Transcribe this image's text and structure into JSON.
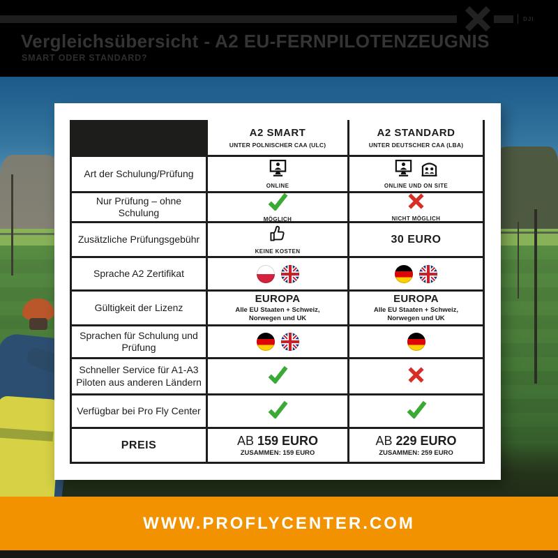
{
  "header": {
    "title": "Vergleichsübersicht - A2 EU-FERNPILOTENZEUGNIS",
    "subtitle": "SMART ODER STANDARD?",
    "partner_label": "DJI"
  },
  "table": {
    "columns": [
      {
        "title": "A2 SMART",
        "subtitle": "UNTER POLNISCHER CAA (ULC)"
      },
      {
        "title": "A2 STANDARD",
        "subtitle": "UNTER DEUTSCHER CAA (LBA)"
      }
    ],
    "rows": [
      {
        "label": "Art der Schulung/Prüfung",
        "smart": {
          "type": "icons",
          "icons": [
            "monitor-user"
          ],
          "caption": "ONLINE"
        },
        "standard": {
          "type": "icons",
          "icons": [
            "monitor-user",
            "building-users"
          ],
          "caption": "ONLINE UND ON SITE"
        }
      },
      {
        "label": "Nur Prüfung – ohne Schulung",
        "smart": {
          "type": "icons",
          "icons": [
            "green-check"
          ],
          "caption": "MÖGLICH"
        },
        "standard": {
          "type": "icons",
          "icons": [
            "red-cross"
          ],
          "caption": "NICHT MÖGLICH"
        }
      },
      {
        "label": "Zusätzliche Prüfungsgebühr",
        "smart": {
          "type": "icons",
          "icons": [
            "thumbs-up"
          ],
          "caption": "KEINE KOSTEN"
        },
        "standard": {
          "type": "text",
          "text": "30 EURO"
        }
      },
      {
        "label": "Sprache A2 Zertifikat",
        "smart": {
          "type": "flags",
          "flags": [
            "poland",
            "uk"
          ]
        },
        "standard": {
          "type": "flags",
          "flags": [
            "germany",
            "uk"
          ]
        }
      },
      {
        "label": "Gültigkeit der Lizenz",
        "smart": {
          "type": "title-sub",
          "title": "EUROPA",
          "sub": "Alle EU Staaten + Schweiz, Norwegen und UK"
        },
        "standard": {
          "type": "title-sub",
          "title": "EUROPA",
          "sub": "Alle EU Staaten + Schweiz, Norwegen und UK"
        }
      },
      {
        "label": "Sprachen für Schulung und Prüfung",
        "smart": {
          "type": "flags",
          "flags": [
            "germany",
            "uk"
          ]
        },
        "standard": {
          "type": "flags",
          "flags": [
            "germany"
          ]
        }
      },
      {
        "label": "Schneller Service für A1-A3 Piloten aus anderen Ländern",
        "smart": {
          "type": "icons",
          "icons": [
            "green-check"
          ],
          "caption": ""
        },
        "standard": {
          "type": "icons",
          "icons": [
            "red-cross"
          ],
          "caption": ""
        }
      },
      {
        "label": "Verfügbar bei Pro Fly Center",
        "smart": {
          "type": "icons",
          "icons": [
            "green-check"
          ],
          "caption": ""
        },
        "standard": {
          "type": "icons",
          "icons": [
            "green-check"
          ],
          "caption": ""
        }
      },
      {
        "label": "PREIS",
        "label_bold": true,
        "smart": {
          "type": "price",
          "prefix": "AB",
          "amount": "159 EURO",
          "sub": "ZUSAMMEN: 159 EURO"
        },
        "standard": {
          "type": "price",
          "prefix": "AB",
          "amount": "229 EURO",
          "sub": "ZUSAMMEN: 259 EURO"
        }
      }
    ]
  },
  "footer": {
    "website": "WWW.PROFLYCENTER.COM"
  },
  "colors": {
    "accent_orange": "#f39200",
    "check_green": "#3aaa35",
    "cross_red": "#d62f27",
    "table_black": "#1d1d1b"
  }
}
